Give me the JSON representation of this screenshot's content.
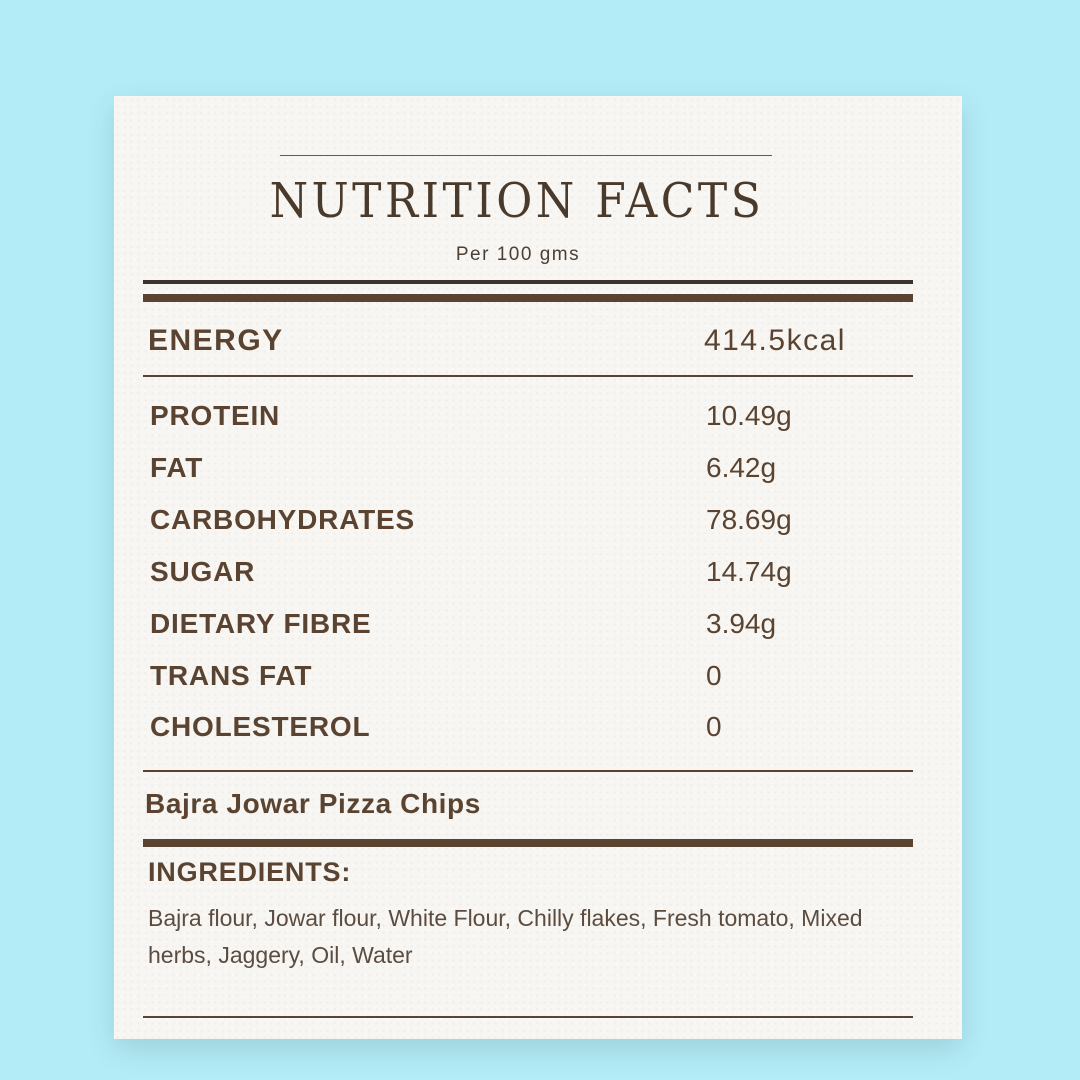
{
  "label": {
    "title": "NUTRITION FACTS",
    "subtitle": "Per 100 gms",
    "energy": {
      "name": "ENERGY",
      "value": "414.5kcal"
    },
    "nutrients": [
      {
        "name": "PROTEIN",
        "value": "10.49g"
      },
      {
        "name": "FAT",
        "value": "6.42g"
      },
      {
        "name": "CARBOHYDRATES",
        "value": "78.69g"
      },
      {
        "name": "SUGAR",
        "value": "14.74g"
      },
      {
        "name": "DIETARY FIBRE",
        "value": "3.94g"
      },
      {
        "name": "TRANS FAT",
        "value": "0"
      },
      {
        "name": "CHOLESTEROL",
        "value": "0"
      }
    ],
    "product_name": "Bajra Jowar Pizza Chips",
    "ingredients_heading": "INGREDIENTS:",
    "ingredients_text": "Bajra flour, Jowar flour, White Flour, Chilly flakes, Fresh tomato, Mixed herbs, Jaggery, Oil, Water"
  },
  "colors": {
    "background": "#b3ecf7",
    "card": "#f7f6f2",
    "text": "#5a4330"
  }
}
